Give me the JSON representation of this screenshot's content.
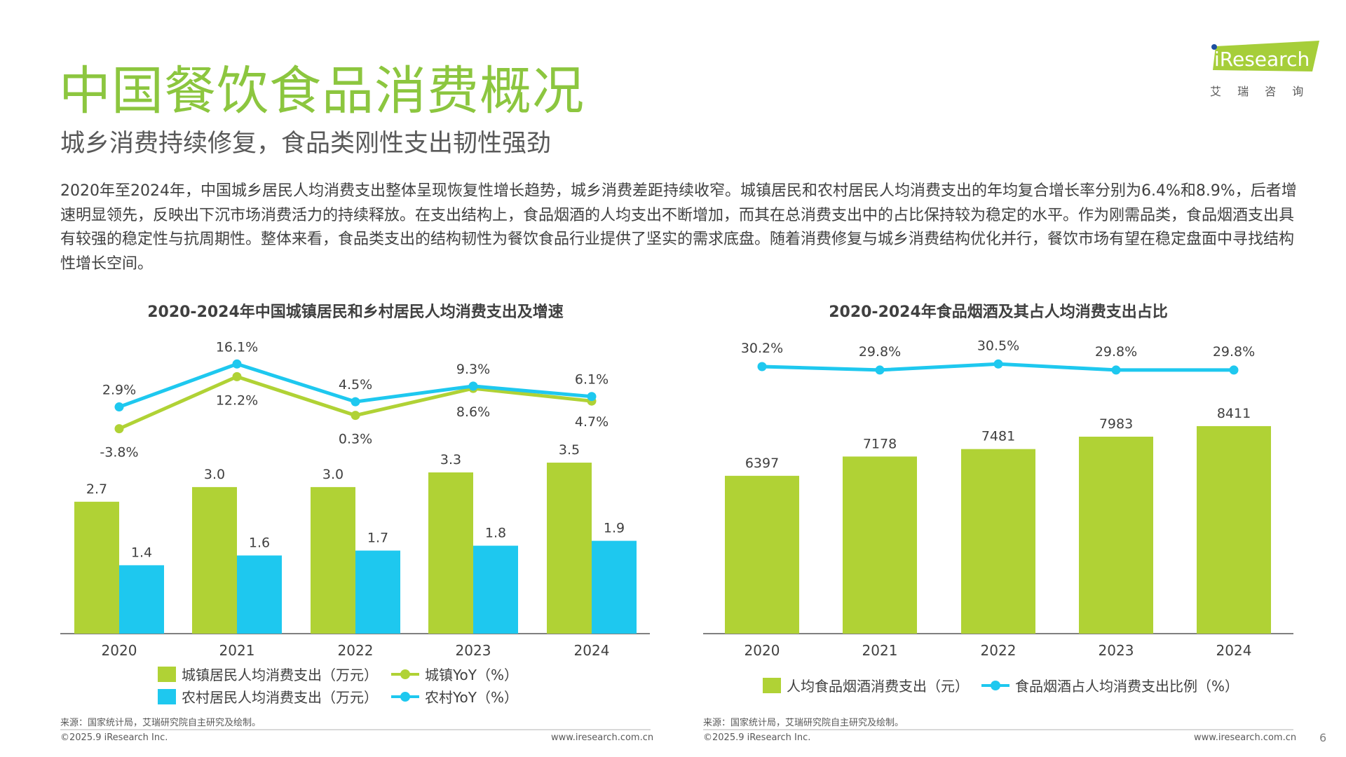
{
  "header": {
    "title": "中国餐饮食品消费概况",
    "subtitle": "城乡消费持续修复，食品类刚性支出韧性强劲",
    "logo_text": "iResearch",
    "logo_sub": "艾 瑞 咨 询"
  },
  "body_text": "2020年至2024年，中国城乡居民人均消费支出整体呈现恢复性增长趋势，城乡消费差距持续收窄。城镇居民和农村居民人均消费支出的年均复合增长率分别为6.4%和8.9%，后者增速明显领先，反映出下沉市场消费活力的持续释放。在支出结构上，食品烟酒的人均支出不断增加，而其在总消费支出中的占比保持较为稳定的水平。作为刚需品类，食品烟酒支出具有较强的稳定性与抗周期性。整体来看，食品类支出的结构韧性为餐饮食品行业提供了坚实的需求底盘。随着消费修复与城乡消费结构优化并行，餐饮市场有望在稳定盘面中寻找结构性增长空间。",
  "colors": {
    "green": "#b0d235",
    "blue": "#1ec8ef",
    "title_green": "#8cc63f"
  },
  "chart_data": [
    {
      "type": "bar+line",
      "title": "2020-2024年中国城镇居民和乡村居民人均消费支出及增速",
      "categories": [
        "2020",
        "2021",
        "2022",
        "2023",
        "2024"
      ],
      "series": [
        {
          "name": "城镇居民人均消费支出（万元）",
          "kind": "bar",
          "color": "#b0d235",
          "values": [
            2.7,
            3.0,
            3.0,
            3.3,
            3.5
          ],
          "labels": [
            "2.7",
            "3.0",
            "3.0",
            "3.3",
            "3.5"
          ]
        },
        {
          "name": "农村居民人均消费支出（万元）",
          "kind": "bar",
          "color": "#1ec8ef",
          "values": [
            1.4,
            1.6,
            1.7,
            1.8,
            1.9
          ],
          "labels": [
            "1.4",
            "1.6",
            "1.7",
            "1.8",
            "1.9"
          ]
        },
        {
          "name": "城镇YoY（%）",
          "kind": "line",
          "color": "#b0d235",
          "values": [
            -3.8,
            12.2,
            0.3,
            8.6,
            4.7
          ],
          "labels": [
            "-3.8%",
            "12.2%",
            "0.3%",
            "8.6%",
            "4.7%"
          ]
        },
        {
          "name": "农村YoY（%）",
          "kind": "line",
          "color": "#1ec8ef",
          "values": [
            2.9,
            16.1,
            4.5,
            9.3,
            6.1
          ],
          "labels": [
            "2.9%",
            "16.1%",
            "4.5%",
            "9.3%",
            "6.1%"
          ]
        }
      ],
      "legend": "bottom",
      "grid": false,
      "source": "来源：国家统计局，艾瑞研究院自主研究及绘制。",
      "copyright": "©2025.9 iResearch Inc.",
      "url": "www.iresearch.com.cn"
    },
    {
      "type": "bar+line",
      "title": "2020-2024年食品烟酒及其占人均消费支出占比",
      "categories": [
        "2020",
        "2021",
        "2022",
        "2023",
        "2024"
      ],
      "series": [
        {
          "name": "人均食品烟酒消费支出（元）",
          "kind": "bar",
          "color": "#b0d235",
          "values": [
            6397,
            7178,
            7481,
            7983,
            8411
          ],
          "labels": [
            "6397",
            "7178",
            "7481",
            "7983",
            "8411"
          ]
        },
        {
          "name": "食品烟酒占人均消费支出比例（%）",
          "kind": "line",
          "color": "#1ec8ef",
          "values": [
            30.2,
            29.8,
            30.5,
            29.8,
            29.8
          ],
          "labels": [
            "30.2%",
            "29.8%",
            "30.5%",
            "29.8%",
            "29.8%"
          ]
        }
      ],
      "legend": "bottom",
      "grid": false,
      "source": "来源：国家统计局，艾瑞研究院自主研究及绘制。",
      "copyright": "©2025.9 iResearch Inc.",
      "url": "www.iresearch.com.cn"
    }
  ],
  "page_number": "6"
}
